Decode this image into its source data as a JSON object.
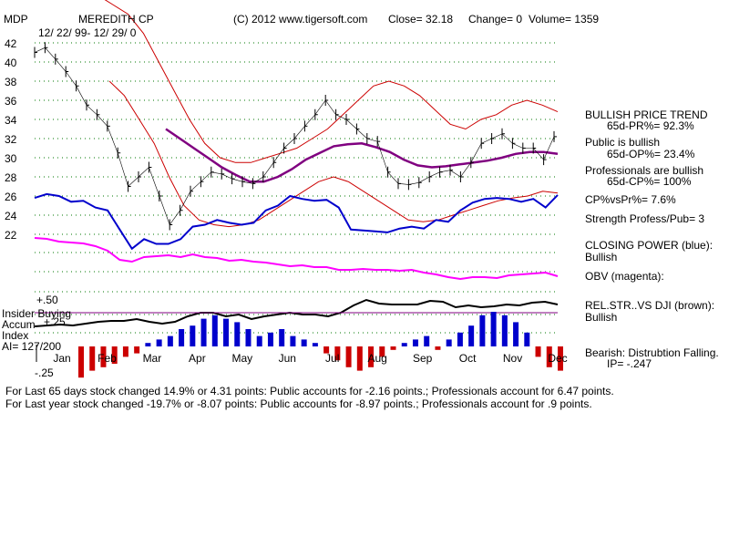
{
  "header": {
    "ticker": "MDP",
    "company": "MEREDITH CP",
    "copyright": "(C) 2012 www.tigersoft.com",
    "close": "Close=  32.18",
    "change": "Change= 0",
    "volume": "Volume= 1359",
    "date_range": "12/ 22/ 99-  12/ 29/ 0"
  },
  "side_panel": {
    "trend_title": "BULLISH PRICE TREND",
    "pr": "65d-PR%= 92.3%",
    "public_status": "Public is bullish",
    "op": "65d-OP%= 23.4%",
    "prof_status": "Professionals are bullish",
    "cp": "65d-CP%= 100%",
    "cp_vs_pr": "CP%vsPr%=  7.6%",
    "strength": "Strength Profess/Pub= 3",
    "closing_power_label": "CLOSING POWER (blue):",
    "closing_power_value": "Bullish",
    "obv_label": "OBV (magenta):",
    "relstr_label": "REL.STR..VS DJI (brown):",
    "relstr_value": "Bullish",
    "bearish_label": "Bearish: Distrubtion Falling.",
    "ip": "IP= -.247"
  },
  "footer": {
    "line1": "For Last 65 days stock changed  14.9% or  4.31 points:  Public accounts for -2.16 points.;  Professionals account for  6.47 points.",
    "line2": "For Last year stock changed -19.7% or -8.07 points:  Public accounts for -8.97 points.;  Professionals account for  .9 points."
  },
  "colors": {
    "price": "#000000",
    "bands": "#cc0000",
    "ma": "#800080",
    "closing_power": "#0000cc",
    "obv": "#ff00ff",
    "relstr": "#000000",
    "accum_pos": "#0000cc",
    "accum_neg": "#cc0000",
    "grid": "#007700"
  },
  "chart_data": {
    "type": "line",
    "title": "MEREDITH CP",
    "price_ylim": [
      22,
      42
    ],
    "price_ticks": [
      "42",
      "40",
      "38",
      "36",
      "34",
      "32",
      "30",
      "28",
      "26",
      "24",
      "22"
    ],
    "months": [
      "Jan",
      "Feb",
      "Mar",
      "Apr",
      "May",
      "Jun",
      "Jul",
      "Aug",
      "Sep",
      "Oct",
      "Nov",
      "Dec"
    ],
    "accum_ticks": [
      "+.50",
      "+.25",
      "-.25"
    ],
    "accum_title": "Insider Buying Accum Index",
    "ai_label": "AI= 127/200",
    "series": [
      {
        "name": "Price",
        "values": [
          41,
          41.5,
          40.3,
          39,
          37.5,
          35.5,
          34.5,
          33.3,
          30.5,
          27,
          28,
          29,
          26,
          23,
          24.5,
          26.5,
          27.5,
          28.5,
          28.3,
          27.8,
          27.5,
          27.3,
          28,
          29.5,
          31,
          32,
          33.3,
          34.5,
          36,
          34.5,
          34,
          33,
          32,
          31.7,
          28.5,
          27.3,
          27.2,
          27.4,
          28,
          28.5,
          28.7,
          28,
          29.5,
          31.5,
          32,
          32.5,
          31.5,
          31,
          31,
          29.8,
          32.2
        ]
      },
      {
        "name": "Upper Band",
        "values": [
          48,
          47,
          46,
          45,
          43,
          40,
          37,
          34,
          31.5,
          30,
          29.5,
          29.5,
          30,
          30.5,
          31,
          32,
          33,
          34.5,
          36,
          37.5,
          38,
          37.5,
          36.5,
          35,
          33.5,
          33,
          34,
          34.5,
          35.5,
          36,
          35.5,
          34.8
        ]
      },
      {
        "name": "Lower Band",
        "values": [
          38,
          36.5,
          34,
          31.5,
          28,
          25,
          23.5,
          23,
          22.8,
          23,
          23.5,
          24.5,
          25.5,
          26.5,
          27.5,
          28,
          27.5,
          26.5,
          25.5,
          24.5,
          23.5,
          23.3,
          23.5,
          24,
          24.5,
          25,
          25.5,
          25.8,
          26,
          26.5,
          26.3
        ]
      },
      {
        "name": "Moving Average",
        "values": [
          33,
          32,
          31,
          30,
          29,
          28.2,
          27.5,
          27.5,
          28,
          28.8,
          29.8,
          30.5,
          31.2,
          31.4,
          31.5,
          31.1,
          30.6,
          29.8,
          29.2,
          29,
          29.1,
          29.3,
          29.5,
          29.7,
          30,
          30.4,
          30.6,
          30.6,
          30.4
        ]
      },
      {
        "name": "Closing Power",
        "values": [
          25.8,
          26.2,
          26,
          25.4,
          25.5,
          24.8,
          24.5,
          22.5,
          20.5,
          21.5,
          21,
          21,
          21.5,
          22.8,
          23,
          23.5,
          23.2,
          23,
          23.2,
          24.5,
          25,
          26,
          25.7,
          25.5,
          25.6,
          24.8,
          22.5,
          22.4,
          22.3,
          22.2,
          22.6,
          22.8,
          22.6,
          23.5,
          23.3,
          24.5,
          25.3,
          25.7,
          25.8,
          25.7,
          25.4,
          25.7,
          24.8,
          26.1
        ]
      }
    ]
  }
}
